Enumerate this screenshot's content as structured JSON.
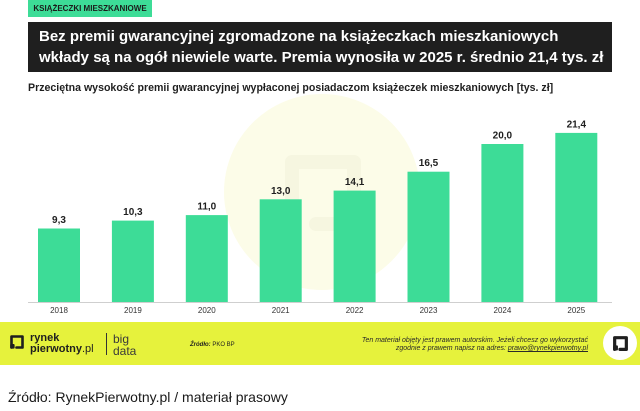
{
  "header": {
    "tag": "KSIĄŻECZKI MIESZKANIOWE",
    "title_lines": [
      "Bez premii gwarancyjnej zgromadzone na książeczkach mieszkaniowych",
      "wkłady są na ogół niewiele warte. Premia wynosiła w 2025 r. średnio 21,4 tys. zł"
    ]
  },
  "chart_data": {
    "type": "bar",
    "title": "Przeciętna wysokość premii gwarancyjnej wypłaconej posiadaczom książeczek mieszkaniowych [tys. zł]",
    "categories": [
      "2018",
      "2019",
      "2020",
      "2021",
      "2022",
      "2023",
      "2024",
      "2025"
    ],
    "values": [
      9.3,
      10.3,
      11.0,
      13.0,
      14.1,
      16.5,
      20.0,
      21.4
    ],
    "data_labels": [
      "9,3",
      "10,3",
      "11,0",
      "13,0",
      "14,1",
      "16,5",
      "20,0",
      "21,4"
    ],
    "ylim": [
      0,
      25
    ],
    "grid": false,
    "bar_color": "#3ddc97"
  },
  "footer": {
    "brand_top": "rynek",
    "brand_bottom": "pierwotny",
    "brand_suffix": ".pl",
    "product_top": "big",
    "product_bottom": "data",
    "source_label": "Źródło:",
    "source_value": "PKO BP",
    "copyright_line1": "Ten materiał objęty jest prawem autorskim. Jeżeli chcesz go wykorzystać",
    "copyright_line2": "zgodnie z prawem napisz na adres: ",
    "copyright_email": "prawo@rynekpierwotny.pl",
    "icons": {
      "brand": "rynekpierwotny-logo-icon",
      "badge": "rynekpierwotny-badge-icon"
    }
  },
  "caption": "Źródło: RynekPierwotny.pl / materiał prasowy",
  "colors": {
    "accent_green": "#3ddc97",
    "title_bar": "#1f1f1f",
    "footer": "#e6f23c",
    "text": "#1f1f1f"
  }
}
